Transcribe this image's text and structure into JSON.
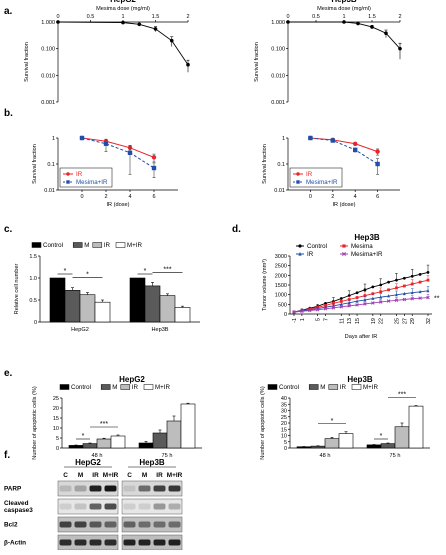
{
  "panels": {
    "a": "a.",
    "b": "b.",
    "c": "c.",
    "d": "d.",
    "e": "e.",
    "f": "f."
  },
  "chart_data": [
    {
      "id": "a-hepg2",
      "type": "line",
      "panel": "a.",
      "title": "HepG2",
      "xlabel": "Mesima dose (mg/ml)",
      "ylabel": "Survival fraction",
      "yscale": "log",
      "ylim": [
        0.001,
        1
      ],
      "xlim": [
        0,
        2
      ],
      "xticks": [
        0,
        0.5,
        1,
        1.5,
        2
      ],
      "xtick_labels": [
        "0",
        "0.5",
        "1",
        "1.5",
        "2"
      ],
      "yticks": [
        0.001,
        0.01,
        0.1,
        1
      ],
      "ytick_labels": [
        "0.001",
        "0.010",
        "0.100",
        "1.000"
      ],
      "x": [
        0,
        1,
        1.25,
        1.5,
        1.75,
        2
      ],
      "y": [
        1,
        0.95,
        0.82,
        0.55,
        0.2,
        0.025
      ],
      "err": [
        0,
        0.03,
        0.05,
        0.12,
        0.08,
        0.012
      ]
    },
    {
      "id": "a-hep3b",
      "type": "line",
      "panel": "a.",
      "title": "Hep3B",
      "xlabel": "Mesima dose (mg/ml)",
      "ylabel": "Survival fraction",
      "yscale": "log",
      "ylim": [
        0.001,
        1
      ],
      "xlim": [
        0,
        2
      ],
      "xticks": [
        0,
        0.5,
        1,
        1.5,
        2
      ],
      "xtick_labels": [
        "0",
        "0.5",
        "1",
        "1.5",
        "2"
      ],
      "yticks": [
        0.001,
        0.01,
        0.1,
        1
      ],
      "ytick_labels": [
        "0.001",
        "0.010",
        "0.100",
        "1.000"
      ],
      "x": [
        0,
        1,
        1.25,
        1.5,
        1.75,
        2
      ],
      "y": [
        1,
        1,
        0.88,
        0.65,
        0.38,
        0.1
      ],
      "err": [
        0,
        0.02,
        0.05,
        0.1,
        0.12,
        0.06
      ]
    },
    {
      "id": "b-hepg2",
      "type": "line",
      "panel": "b.",
      "xlabel": "IR (dose)",
      "ylabel": "Survival fraction",
      "yscale": "log",
      "ylim": [
        0.01,
        1
      ],
      "xlim": [
        -2,
        8
      ],
      "xticks": [
        0,
        2,
        4,
        6
      ],
      "xtick_labels": [
        "0",
        "2",
        "4",
        "6"
      ],
      "yticks": [
        0.01,
        0.1,
        1
      ],
      "ytick_labels": [
        "0.01",
        "0.1",
        "1"
      ],
      "x": [
        0,
        2,
        4,
        6
      ],
      "legend": "lower-left",
      "series": [
        {
          "name": "IR",
          "color": "#e8252a",
          "style": "solid",
          "marker": "circle",
          "values": [
            1,
            0.75,
            0.42,
            0.18
          ],
          "err": [
            0,
            0.08,
            0.1,
            0.06
          ]
        },
        {
          "name": "Mesima+IR",
          "color": "#1f4fa8",
          "style": "dashed",
          "marker": "square",
          "values": [
            1,
            0.6,
            0.27,
            0.07
          ],
          "err": [
            0,
            0.3,
            0.23,
            0.04
          ]
        }
      ]
    },
    {
      "id": "b-hep3b",
      "type": "line",
      "panel": "b.",
      "xlabel": "IR (dose)",
      "ylabel": "Survival fraction",
      "yscale": "log",
      "ylim": [
        0.01,
        1
      ],
      "xlim": [
        -2,
        8
      ],
      "xticks": [
        0,
        2,
        4,
        6
      ],
      "xtick_labels": [
        "0",
        "2",
        "4",
        "6"
      ],
      "yticks": [
        0.01,
        0.1,
        1
      ],
      "ytick_labels": [
        "0.01",
        "0.1",
        "1"
      ],
      "x": [
        0,
        2,
        4,
        6
      ],
      "legend": "lower-left",
      "series": [
        {
          "name": "IR",
          "color": "#e8252a",
          "style": "solid",
          "marker": "circle",
          "values": [
            1,
            0.85,
            0.6,
            0.3
          ],
          "err": [
            0,
            0.05,
            0.08,
            0.08
          ]
        },
        {
          "name": "Mesima+IR",
          "color": "#1f4fa8",
          "style": "dashed",
          "marker": "square",
          "values": [
            1,
            0.8,
            0.35,
            0.1
          ],
          "err": [
            0,
            0.05,
            0.06,
            0.06
          ]
        }
      ]
    },
    {
      "id": "c",
      "type": "bar",
      "panel": "c.",
      "ylabel": "Relative cell number",
      "ylim": [
        0,
        1.5
      ],
      "yticks": [
        0,
        0.5,
        1,
        1.5
      ],
      "ytick_labels": [
        "0",
        "0.5",
        "1.0",
        "1.5"
      ],
      "categories": [
        "HepG2",
        "Hep3B"
      ],
      "legend": "top",
      "series": [
        {
          "name": "Control",
          "color": "#000000",
          "values": [
            1.0,
            1.0
          ],
          "err": [
            0,
            0
          ]
        },
        {
          "name": "M",
          "color": "#5a5a5a",
          "values": [
            0.72,
            0.82
          ],
          "err": [
            0.06,
            0.08
          ]
        },
        {
          "name": "IR",
          "color": "#bdbdbd",
          "values": [
            0.62,
            0.6
          ],
          "err": [
            0.05,
            0.04
          ]
        },
        {
          "name": "M+IR",
          "color": "#ffffff",
          "values": [
            0.45,
            0.33
          ],
          "err": [
            0.05,
            0.03
          ]
        }
      ],
      "significance": [
        {
          "cat": 0,
          "from": 0,
          "to": 1,
          "label": "*"
        },
        {
          "cat": 0,
          "from": 1,
          "to": 3,
          "label": "*"
        },
        {
          "cat": 1,
          "from": 0,
          "to": 1,
          "label": "*"
        },
        {
          "cat": 1,
          "from": 1,
          "to": 3,
          "label": "***"
        }
      ]
    },
    {
      "id": "d",
      "type": "line",
      "panel": "d.",
      "title": "Hep3B",
      "xlabel": "Days after IR",
      "ylabel": "Tumor volume (mm³)",
      "ylim": [
        0,
        3000
      ],
      "yticks": [
        0,
        500,
        1000,
        1500,
        2000,
        2500,
        3000
      ],
      "ytick_labels": [
        "0",
        "500",
        "1000",
        "1500",
        "2000",
        "2500",
        "3000"
      ],
      "categories": [
        "-1",
        "1",
        "3",
        "5",
        "7",
        "9",
        "11",
        "13",
        "15",
        "17",
        "19",
        "21",
        "23",
        "25",
        "27",
        "29",
        "31",
        "32"
      ],
      "xtick_labels": [
        "-1",
        "1",
        "5",
        "7",
        "11",
        "13",
        "15",
        "19",
        "22",
        "25",
        "27",
        "29",
        "32"
      ],
      "annotation": "**",
      "legend": "top-left",
      "series": [
        {
          "name": "Control",
          "color": "#000000",
          "marker": "circle",
          "values": [
            100,
            200,
            300,
            400,
            550,
            650,
            800,
            950,
            1100,
            1250,
            1400,
            1500,
            1650,
            1750,
            1850,
            1950,
            2050,
            2150
          ],
          "err": [
            30,
            60,
            80,
            100,
            150,
            200,
            220,
            250,
            280,
            300,
            300,
            320,
            340,
            350,
            350,
            360,
            370,
            380
          ]
        },
        {
          "name": "Mesima",
          "color": "#e8252a",
          "marker": "square",
          "values": [
            100,
            180,
            260,
            340,
            440,
            550,
            650,
            750,
            850,
            950,
            1050,
            1150,
            1250,
            1350,
            1450,
            1550,
            1650,
            1750
          ],
          "err": [
            20,
            40,
            60,
            80,
            100,
            120,
            140,
            160,
            180,
            200,
            200,
            200,
            210,
            220,
            220,
            230,
            230,
            240
          ]
        },
        {
          "name": "IR",
          "color": "#1f4fa8",
          "marker": "triangle",
          "values": [
            100,
            160,
            220,
            280,
            350,
            420,
            500,
            580,
            660,
            730,
            800,
            870,
            930,
            990,
            1050,
            1100,
            1150,
            1200
          ],
          "err": [
            20,
            30,
            50,
            60,
            80,
            100,
            120,
            140,
            150,
            160,
            170,
            180,
            190,
            200,
            200,
            210,
            210,
            220
          ]
        },
        {
          "name": "Mesima+IR",
          "color": "#a040b8",
          "marker": "x",
          "values": [
            100,
            140,
            180,
            220,
            270,
            320,
            370,
            420,
            470,
            520,
            570,
            620,
            670,
            710,
            750,
            790,
            820,
            850
          ],
          "err": [
            20,
            30,
            40,
            50,
            60,
            70,
            80,
            90,
            100,
            110,
            120,
            130,
            140,
            150,
            150,
            160,
            160,
            170
          ]
        }
      ]
    },
    {
      "id": "e-hepg2",
      "type": "bar",
      "panel": "e.",
      "title": "HepG2",
      "ylabel": "Number of apoptotic cells (%)",
      "ylim": [
        0,
        25
      ],
      "yticks": [
        0,
        5,
        10,
        15,
        20,
        25
      ],
      "ytick_labels": [
        "0",
        "5",
        "10",
        "15",
        "20",
        "25"
      ],
      "categories": [
        "48 h",
        "75 h"
      ],
      "legend": "top",
      "series": [
        {
          "name": "Control",
          "color": "#000000",
          "values": [
            1.3,
            2.5
          ],
          "err": [
            0.2,
            0.8
          ]
        },
        {
          "name": "M",
          "color": "#5a5a5a",
          "values": [
            2.2,
            7.5
          ],
          "err": [
            0.3,
            1.5
          ]
        },
        {
          "name": "IR",
          "color": "#bdbdbd",
          "values": [
            4.5,
            13.5
          ],
          "err": [
            0.4,
            2.5
          ]
        },
        {
          "name": "M+IR",
          "color": "#ffffff",
          "values": [
            6.0,
            22.0
          ],
          "err": [
            0.5,
            0.4
          ]
        }
      ],
      "significance": [
        {
          "cat": 0,
          "from": 0,
          "to": 1,
          "label": "*"
        },
        {
          "cat": 0,
          "from": 1,
          "to": 3,
          "label": "***"
        }
      ]
    },
    {
      "id": "e-hep3b",
      "type": "bar",
      "panel": "e.",
      "title": "Hep3B",
      "ylabel": "Number of apoptotic cells (%)",
      "ylim": [
        0,
        40
      ],
      "yticks": [
        0,
        5,
        10,
        15,
        20,
        25,
        30,
        35,
        40
      ],
      "ytick_labels": [
        "0",
        "5",
        "10",
        "15",
        "20",
        "25",
        "30",
        "35",
        "40"
      ],
      "categories": [
        "48 h",
        "75 h"
      ],
      "legend": "top",
      "series": [
        {
          "name": "Control",
          "color": "#000000",
          "values": [
            1.0,
            2.5
          ],
          "err": [
            0.2,
            0.3
          ]
        },
        {
          "name": "M",
          "color": "#5a5a5a",
          "values": [
            1.5,
            3.5
          ],
          "err": [
            0.3,
            0.5
          ]
        },
        {
          "name": "IR",
          "color": "#bdbdbd",
          "values": [
            7.5,
            17.0
          ],
          "err": [
            1.0,
            3.0
          ]
        },
        {
          "name": "M+IR",
          "color": "#ffffff",
          "values": [
            11.5,
            33.5
          ],
          "err": [
            1.5,
            0.5
          ]
        }
      ],
      "significance": [
        {
          "cat": 0,
          "from": 1,
          "to": 3,
          "label": "*"
        },
        {
          "cat": 1,
          "from": 0,
          "to": 1,
          "label": "*"
        },
        {
          "cat": 1,
          "from": 1,
          "to": 3,
          "label": "***"
        }
      ]
    }
  ],
  "western": {
    "groups": [
      "HepG2",
      "Hep3B"
    ],
    "lanes": [
      "C",
      "M",
      "IR",
      "M+IR",
      "C",
      "M",
      "IR",
      "M+IR"
    ],
    "rows": [
      {
        "label": "PARP",
        "bg": "#d8d8d8",
        "intensity": [
          0.15,
          0.25,
          0.85,
          0.9,
          0.1,
          0.5,
          0.7,
          0.75
        ]
      },
      {
        "label": "Cleaved\ncaspase3",
        "bg": "#e6e6e6",
        "intensity": [
          0.05,
          0.1,
          0.55,
          0.65,
          0.05,
          0.05,
          0.3,
          0.2
        ]
      },
      {
        "label": "Bcl2",
        "bg": "#c0c0c0",
        "intensity": [
          0.7,
          0.7,
          0.6,
          0.55,
          0.55,
          0.5,
          0.5,
          0.5
        ]
      },
      {
        "label": "β-Actin",
        "bg": "#bebebe",
        "intensity": [
          0.8,
          0.8,
          0.8,
          0.8,
          0.85,
          0.85,
          0.85,
          0.85
        ]
      }
    ]
  }
}
